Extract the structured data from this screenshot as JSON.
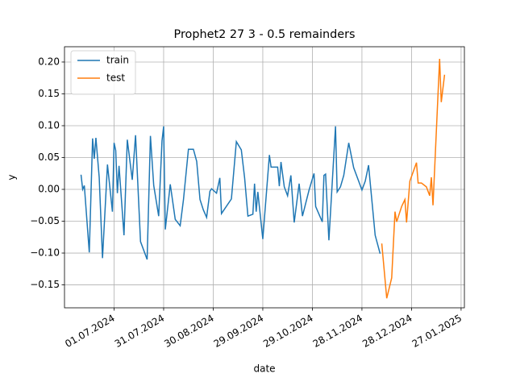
{
  "chart_data": {
    "type": "line",
    "title": "Prophet2 27 3 - 0.5 remainders",
    "x_label": "date",
    "y_label": "y",
    "xlim": [
      "2024-06-01",
      "2025-01-29"
    ],
    "ylim": [
      -0.186,
      0.224
    ],
    "xticks": [
      {
        "value": "2024-07-01",
        "label": "01.07.2024"
      },
      {
        "value": "2024-07-31",
        "label": "31.07.2024"
      },
      {
        "value": "2024-08-30",
        "label": "30.08.2024"
      },
      {
        "value": "2024-09-29",
        "label": "29.09.2024"
      },
      {
        "value": "2024-10-29",
        "label": "29.10.2024"
      },
      {
        "value": "2024-11-28",
        "label": "28.11.2024"
      },
      {
        "value": "2024-12-28",
        "label": "28.12.2024"
      },
      {
        "value": "2025-01-27",
        "label": "27.01.2025"
      }
    ],
    "yticks": [
      {
        "value": -0.15,
        "label": "−0.15"
      },
      {
        "value": -0.1,
        "label": "−0.10"
      },
      {
        "value": -0.05,
        "label": "−0.05"
      },
      {
        "value": 0,
        "label": "0.00"
      },
      {
        "value": 0.05,
        "label": "0.05"
      },
      {
        "value": 0.1,
        "label": "0.10"
      },
      {
        "value": 0.15,
        "label": "0.15"
      },
      {
        "value": 0.2,
        "label": "0.20"
      }
    ],
    "grid": true,
    "legend": "upper left",
    "series": [
      {
        "name": "train",
        "color": "#1f77b4",
        "x": [
          "2024-06-11",
          "2024-06-12",
          "2024-06-13",
          "2024-06-16",
          "2024-06-18",
          "2024-06-19",
          "2024-06-20",
          "2024-06-22",
          "2024-06-24",
          "2024-06-27",
          "2024-06-30",
          "2024-07-01",
          "2024-07-02",
          "2024-07-03",
          "2024-07-04",
          "2024-07-07",
          "2024-07-09",
          "2024-07-12",
          "2024-07-14",
          "2024-07-17",
          "2024-07-21",
          "2024-07-23",
          "2024-07-25",
          "2024-07-28",
          "2024-07-30",
          "2024-07-31",
          "2024-08-01",
          "2024-08-04",
          "2024-08-07",
          "2024-08-10",
          "2024-08-12",
          "2024-08-15",
          "2024-08-18",
          "2024-08-20",
          "2024-08-22",
          "2024-08-24",
          "2024-08-26",
          "2024-08-28",
          "2024-08-29",
          "2024-09-01",
          "2024-09-03",
          "2024-09-04",
          "2024-09-10",
          "2024-09-13",
          "2024-09-16",
          "2024-09-18",
          "2024-09-20",
          "2024-09-23",
          "2024-09-24",
          "2024-09-25",
          "2024-09-26",
          "2024-09-29",
          "2024-10-03",
          "2024-10-04",
          "2024-10-08",
          "2024-10-09",
          "2024-10-10",
          "2024-10-12",
          "2024-10-14",
          "2024-10-16",
          "2024-10-18",
          "2024-10-21",
          "2024-10-23",
          "2024-10-27",
          "2024-10-30",
          "2024-10-31",
          "2024-11-04",
          "2024-11-05",
          "2024-11-06",
          "2024-11-08",
          "2024-11-12",
          "2024-11-13",
          "2024-11-15",
          "2024-11-17",
          "2024-11-20",
          "2024-11-23",
          "2024-11-26",
          "2024-11-28",
          "2024-11-30",
          "2024-12-02",
          "2024-12-06",
          "2024-12-09"
        ],
        "values": [
          0.023,
          0,
          0.006,
          -0.099,
          0.08,
          0.048,
          0.081,
          0.019,
          -0.108,
          0.039,
          -0.035,
          0.073,
          0.061,
          -0.006,
          0.037,
          -0.072,
          0.078,
          0.015,
          0.085,
          -0.082,
          -0.11,
          0.084,
          0.006,
          -0.042,
          0.076,
          0.099,
          -0.063,
          0.008,
          -0.047,
          -0.057,
          -0.016,
          0.063,
          0.063,
          0.044,
          -0.016,
          -0.032,
          -0.044,
          -0.003,
          0.001,
          -0.006,
          0.018,
          -0.038,
          -0.015,
          0.075,
          0.062,
          0.018,
          -0.042,
          -0.039,
          0.009,
          -0.035,
          -0.004,
          -0.078,
          0.054,
          0.035,
          0.035,
          0.005,
          0.043,
          0.004,
          -0.01,
          0.022,
          -0.052,
          0.009,
          -0.042,
          -0.001,
          0.025,
          -0.027,
          -0.051,
          0.022,
          0.024,
          -0.08,
          0.099,
          -0.004,
          0.004,
          0.022,
          0.073,
          0.034,
          0.013,
          -0.001,
          0.013,
          0.038,
          -0.072,
          -0.101
        ]
      },
      {
        "name": "test",
        "color": "#ff7f0e",
        "x": [
          "2024-12-10",
          "2024-12-13",
          "2024-12-16",
          "2024-12-18",
          "2024-12-19",
          "2024-12-22",
          "2024-12-24",
          "2024-12-25",
          "2024-12-27",
          "2024-12-31",
          "2025-01-01",
          "2025-01-03",
          "2025-01-06",
          "2025-01-08",
          "2025-01-09",
          "2025-01-10",
          "2025-01-14",
          "2025-01-15",
          "2025-01-17"
        ],
        "values": [
          -0.085,
          -0.171,
          -0.139,
          -0.035,
          -0.051,
          -0.027,
          -0.016,
          -0.052,
          0.013,
          0.042,
          0.01,
          0.01,
          0.004,
          -0.01,
          0.019,
          -0.025,
          0.205,
          0.137,
          0.18
        ]
      }
    ]
  }
}
